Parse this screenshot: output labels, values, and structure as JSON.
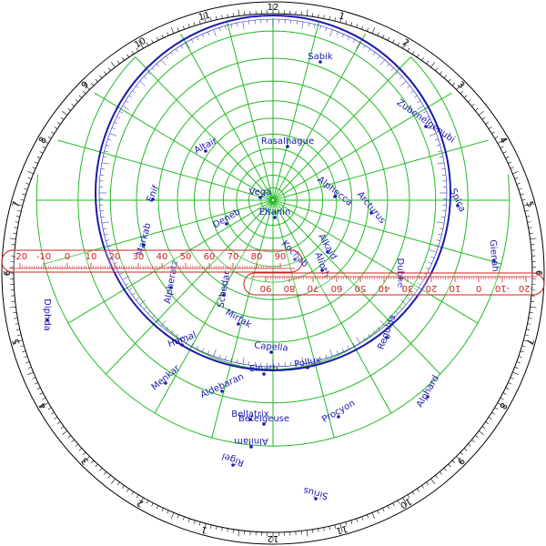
{
  "hour_labels": [
    "12",
    "1",
    "2",
    "3",
    "4",
    "5",
    "6",
    "7",
    "8",
    "9",
    "10",
    "11",
    "12",
    "1",
    "2",
    "3",
    "4",
    "5",
    "6",
    "7",
    "8",
    "9",
    "10",
    "11"
  ],
  "stars": [
    {
      "name": "Sabik"
    },
    {
      "name": "Rasalhague"
    },
    {
      "name": "Zubenelgenubi"
    },
    {
      "name": "Altair"
    },
    {
      "name": "Spica"
    },
    {
      "name": "Enif"
    },
    {
      "name": "Vega"
    },
    {
      "name": "Alphecca"
    },
    {
      "name": "Arcturus"
    },
    {
      "name": "Eltanin"
    },
    {
      "name": "Deneb"
    },
    {
      "name": "Gienah"
    },
    {
      "name": "Markab"
    },
    {
      "name": "Kochab"
    },
    {
      "name": "Alkaid"
    },
    {
      "name": "Alioth"
    },
    {
      "name": "Alpheratz"
    },
    {
      "name": "Schedar"
    },
    {
      "name": "Dubhe"
    },
    {
      "name": "Diphda"
    },
    {
      "name": "Regulus"
    },
    {
      "name": "Mirfak"
    },
    {
      "name": "Hamal"
    },
    {
      "name": "Capella"
    },
    {
      "name": "Pollux"
    },
    {
      "name": "Menkar"
    },
    {
      "name": "Aldebaran"
    },
    {
      "name": "Elnath"
    },
    {
      "name": "Alphard"
    },
    {
      "name": "Procyon"
    },
    {
      "name": "Betelgeuse"
    },
    {
      "name": "Bellatrix"
    },
    {
      "name": "Alnilam"
    },
    {
      "name": "Rigel"
    },
    {
      "name": "Sirius"
    }
  ],
  "ruler_left": {
    "labels": [
      "-20",
      "-10",
      "0",
      "10",
      "20",
      "30",
      "40",
      "50",
      "60",
      "70",
      "80",
      "90"
    ]
  },
  "ruler_right": {
    "labels": [
      "-20",
      "-10",
      "0",
      "10",
      "20",
      "30",
      "40",
      "50",
      "60",
      "70",
      "80",
      "90"
    ]
  },
  "colors": {
    "rim": "#000000",
    "grid": "#22bb22",
    "stars": "#1a1aaa",
    "rulers": "#cc2222"
  }
}
